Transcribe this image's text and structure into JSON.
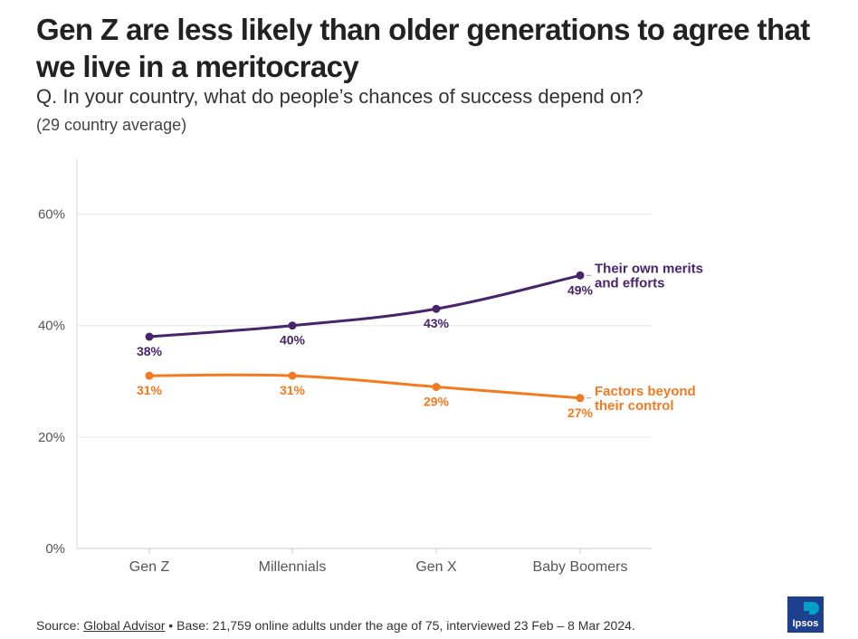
{
  "title": "Gen Z are less likely than older generations to agree that we live in a meritocracy",
  "subtitle": "Q. In your country, what do people’s chances of success depend on?",
  "note": "(29 country average)",
  "source": {
    "prefix": "Source: ",
    "link_text": "Global Advisor",
    "text": " • Base: 21,759 online adults under the age of 75, interviewed 23 Feb – 8 Mar 2024."
  },
  "logo": {
    "text": "Ipsos",
    "color": "#1f3f8f",
    "accent": "#00a0c6"
  },
  "chart_data": {
    "type": "line",
    "categories": [
      "Gen Z",
      "Millennials",
      "Gen X",
      "Baby Boomers"
    ],
    "series": [
      {
        "name": "Their own merits and efforts",
        "label_lines": [
          "Their own merits",
          "and efforts"
        ],
        "values": [
          38,
          40,
          43,
          49
        ],
        "value_labels": [
          "38%",
          "40%",
          "43%",
          "49%"
        ],
        "color": "#46256a"
      },
      {
        "name": "Factors beyond their control",
        "label_lines": [
          "Factors beyond",
          "their control"
        ],
        "values": [
          31,
          31,
          29,
          27
        ],
        "value_labels": [
          "31%",
          "31%",
          "29%",
          "27%"
        ],
        "color": "#f37a1f"
      }
    ],
    "ylim": [
      0,
      70
    ],
    "yticks": [
      0,
      20,
      40,
      60
    ],
    "ytick_labels": [
      "0%",
      "20%",
      "40%",
      "60%"
    ],
    "grid": true,
    "xlabel": "",
    "ylabel": ""
  }
}
